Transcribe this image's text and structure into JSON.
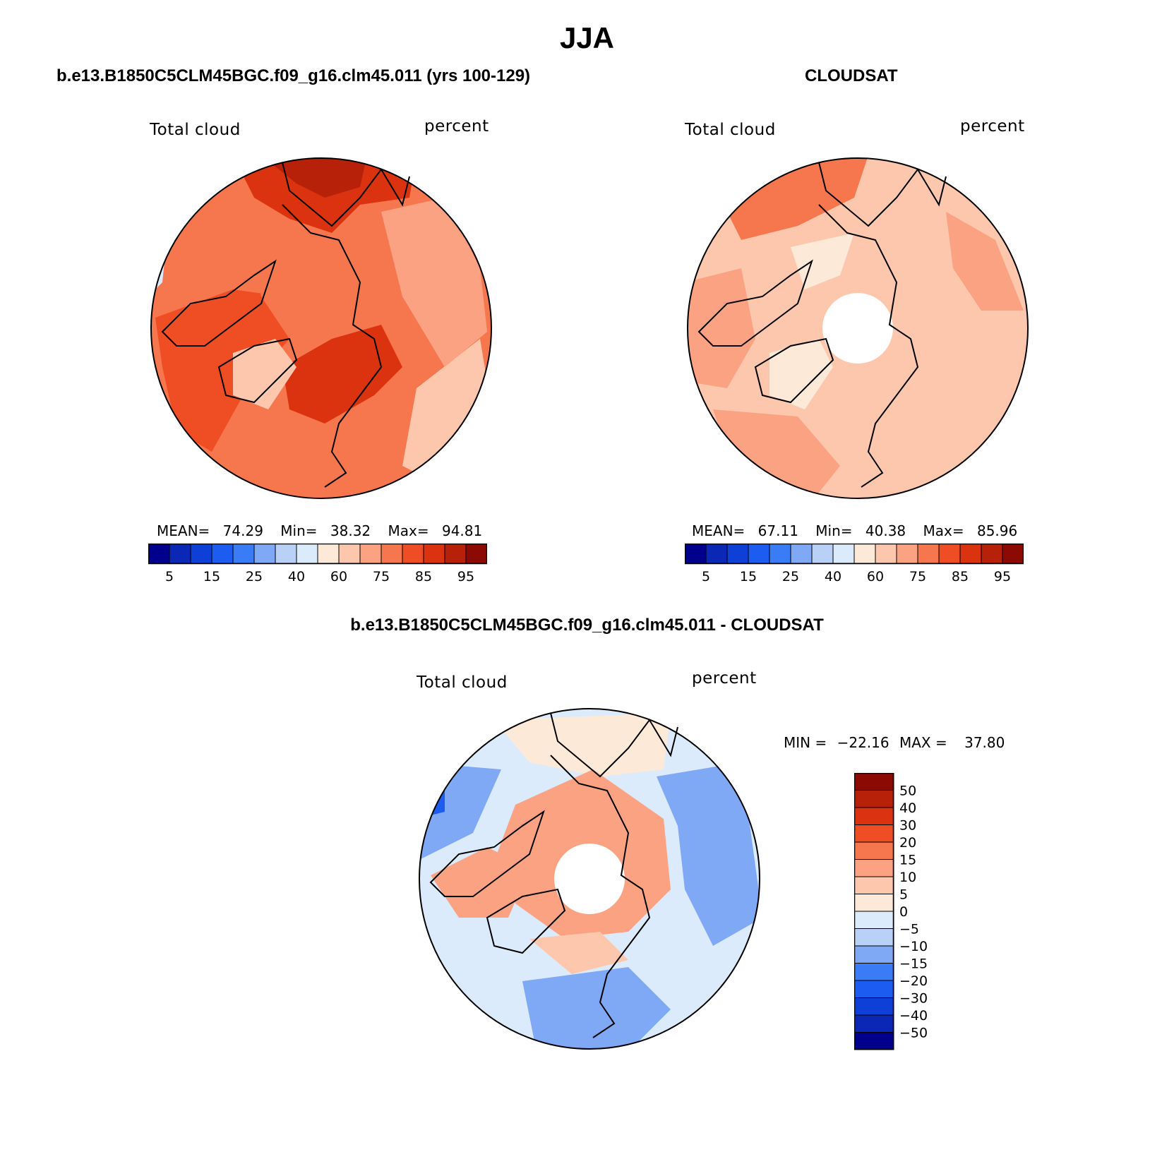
{
  "page": {
    "season": "JJA",
    "colors": {
      "levels": [
        "#00008c",
        "#0a27b5",
        "#0e3fd6",
        "#1d5cf0",
        "#3a7cf5",
        "#7fa8f5",
        "#b9d0f7",
        "#dcebfb",
        "#fde9d8",
        "#fcc7ad",
        "#fba283",
        "#f6774e",
        "#ef4d24",
        "#db3310",
        "#b82109",
        "#8c0a04"
      ],
      "coast": "#000000",
      "missing": "#ffffff"
    }
  },
  "panels": [
    {
      "heading": "b.e13.B1850C5CLM45BGC.f09_g16.clm45.011 (yrs 100-129)",
      "variable": "Total cloud",
      "units": "percent",
      "stats": {
        "mean_label": "MEAN=",
        "mean": "74.29",
        "min_label": "Min=",
        "min": "38.32",
        "max_label": "Max=",
        "max": "94.81"
      },
      "colorbar": {
        "levels": [
          5,
          10,
          15,
          20,
          25,
          30,
          40,
          50,
          60,
          70,
          75,
          80,
          85,
          90,
          95
        ],
        "tick_labels": [
          "5",
          "15",
          "25",
          "40",
          "60",
          "75",
          "85",
          "95"
        ]
      },
      "field": {
        "base_level": 11,
        "pole_hole": false
      }
    },
    {
      "heading": "CLOUDSAT",
      "variable": "Total cloud",
      "units": "percent",
      "stats": {
        "mean_label": "MEAN=",
        "mean": "67.11",
        "min_label": "Min=",
        "min": "40.38",
        "max_label": "Max=",
        "max": "85.96"
      },
      "colorbar": {
        "levels": [
          5,
          10,
          15,
          20,
          25,
          30,
          40,
          50,
          60,
          70,
          75,
          80,
          85,
          90,
          95
        ],
        "tick_labels": [
          "5",
          "15",
          "25",
          "40",
          "60",
          "75",
          "85",
          "95"
        ]
      },
      "field": {
        "base_level": 9,
        "pole_hole": true
      }
    },
    {
      "heading": "b.e13.B1850C5CLM45BGC.f09_g16.clm45.011 - CLOUDSAT",
      "variable": "Total cloud",
      "units": "percent",
      "stats": {
        "min_label": "MIN =",
        "min": "−22.16",
        "max_label": "MAX =",
        "max": "37.80"
      },
      "colorbar": {
        "levels": [
          50,
          40,
          30,
          20,
          15,
          10,
          5,
          0,
          -5,
          -10,
          -15,
          -20,
          -30,
          -40,
          -50
        ],
        "tick_labels": [
          "50",
          "40",
          "30",
          "20",
          "15",
          "10",
          "5",
          "0",
          "−5",
          "−10",
          "−15",
          "−20",
          "−30",
          "−40",
          "−50"
        ]
      },
      "field": {
        "base_level": 7,
        "pole_hole": true
      }
    }
  ]
}
